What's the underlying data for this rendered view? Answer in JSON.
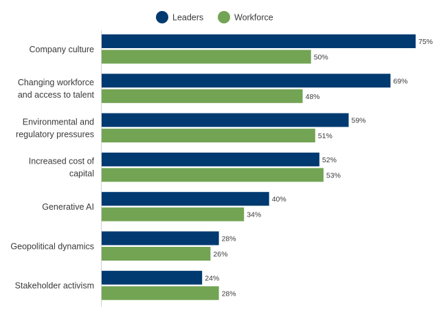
{
  "chart_data": {
    "type": "bar",
    "orientation": "horizontal",
    "legend_position": "top-center",
    "grid": false,
    "xlim": [
      0,
      76
    ],
    "categories": [
      [
        "Company culture"
      ],
      [
        "Changing workforce",
        "and access to talent"
      ],
      [
        "Environmental and",
        "regulatory pressures"
      ],
      [
        "Increased cost of",
        "capital"
      ],
      [
        "Generative AI"
      ],
      [
        "Geopolitical dynamics"
      ],
      [
        "Stakeholder activism"
      ]
    ],
    "series": [
      {
        "name": "Leaders",
        "color": "#003a70",
        "values": [
          75,
          69,
          59,
          52,
          40,
          28,
          24
        ],
        "labels": [
          "75%",
          "69%",
          "59%",
          "52%",
          "40%",
          "28%",
          "24%"
        ]
      },
      {
        "name": "Workforce",
        "color": "#72a454",
        "values": [
          50,
          48,
          51,
          53,
          34,
          26,
          28
        ],
        "labels": [
          "50%",
          "48%",
          "51%",
          "53%",
          "34%",
          "26%",
          "28%"
        ]
      }
    ]
  }
}
